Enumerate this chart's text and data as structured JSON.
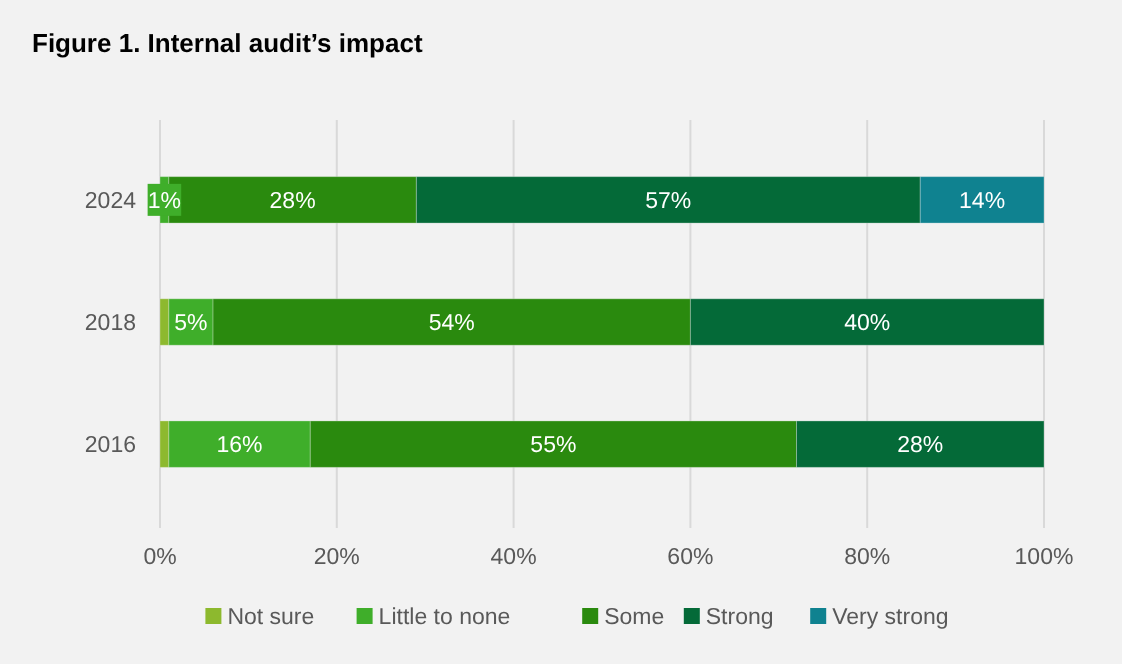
{
  "chart_data": {
    "type": "bar",
    "orientation": "horizontal",
    "stacked": true,
    "title": "Figure 1. Internal audit’s impact",
    "categories": [
      "2024",
      "2018",
      "2016"
    ],
    "series": [
      {
        "name": "Not sure",
        "color": "#8db92e",
        "values": [
          null,
          1,
          1
        ],
        "value_labels": [
          null,
          null,
          null
        ]
      },
      {
        "name": "Little to none",
        "color": "#3fae2a",
        "values": [
          1,
          5,
          16
        ],
        "value_labels": [
          "1%",
          "5%",
          "16%"
        ]
      },
      {
        "name": "Some",
        "color": "#2a8a0e",
        "values": [
          28,
          54,
          55
        ],
        "value_labels": [
          "28%",
          "54%",
          "55%"
        ]
      },
      {
        "name": "Strong",
        "color": "#046a38",
        "values": [
          57,
          40,
          28
        ],
        "value_labels": [
          "57%",
          "40%",
          "28%"
        ]
      },
      {
        "name": "Very strong",
        "color": "#0f8290",
        "values": [
          14,
          null,
          null
        ],
        "value_labels": [
          "14%",
          null,
          null
        ]
      }
    ],
    "xlim": [
      0,
      100
    ],
    "xticks": [
      {
        "value": 0,
        "label": "0%"
      },
      {
        "value": 20,
        "label": "20%"
      },
      {
        "value": 40,
        "label": "40%"
      },
      {
        "value": 60,
        "label": "60%"
      },
      {
        "value": 80,
        "label": "80%"
      },
      {
        "value": 100,
        "label": "100%"
      }
    ],
    "grid": "x",
    "legend": "bottom"
  }
}
